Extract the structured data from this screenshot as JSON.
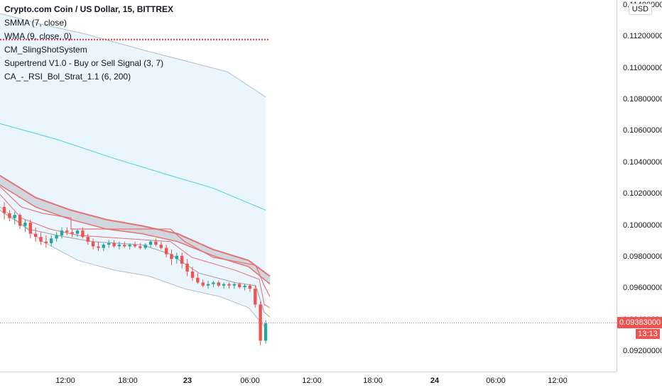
{
  "legend": {
    "title": "Crypto.com Coin / US Dollar, 15, BITTREX",
    "indicators": [
      "SMMA (7, close)",
      "WMA (9, close, 0)",
      "CM_SlingShotSystem",
      "Supertrend V1.0 - Buy or Sell Signal (3, 7)",
      "CA_-_RSI_Bol_Strat_1.1 (6, 200)"
    ]
  },
  "currency": "USD",
  "price_axis": {
    "ticks": [
      "0.11400000",
      "0.11200000",
      "0.11000000",
      "0.10800000",
      "0.10600000",
      "0.10400000",
      "0.10200000",
      "0.10000000",
      "0.09800000",
      "0.09600000",
      "0.09400000",
      "0.09200000"
    ],
    "last_price": "0.09383000",
    "countdown": "13:13"
  },
  "time_axis": {
    "ticks": [
      {
        "label": "12:00",
        "bold": false
      },
      {
        "label": "18:00",
        "bold": false
      },
      {
        "label": "23",
        "bold": true
      },
      {
        "label": "06:00",
        "bold": false
      },
      {
        "label": "12:00",
        "bold": false
      },
      {
        "label": "18:00",
        "bold": false
      },
      {
        "label": "24",
        "bold": true
      },
      {
        "label": "06:00",
        "bold": false
      },
      {
        "label": "12:00",
        "bold": false
      }
    ]
  },
  "colors": {
    "up": "#26a69a",
    "down": "#ef5350",
    "band_fill": "#e3f2fd",
    "band_line": "#b2bec9",
    "wma": "#4dd0e1",
    "supertrend": "#e57373",
    "cloud": "#c9cdd6",
    "stop_line": "#e53935"
  },
  "chart_data": {
    "type": "candlestick",
    "title": "Crypto.com Coin / US Dollar, 15, BITTREX",
    "interval": "15",
    "ylim": [
      0.091,
      0.1145
    ],
    "x_ticks": [
      "12:00",
      "18:00",
      "23",
      "06:00",
      "12:00",
      "18:00",
      "24",
      "06:00",
      "12:00"
    ],
    "last_price": 0.09383,
    "candles": [
      [
        0.1012,
        0.1015,
        0.1004,
        0.1008
      ],
      [
        0.1008,
        0.101,
        0.1003,
        0.1005
      ],
      [
        0.1005,
        0.1009,
        0.1001,
        0.1007
      ],
      [
        0.1007,
        0.1008,
        0.0998,
        0.1
      ],
      [
        0.1,
        0.1004,
        0.0996,
        0.1002
      ],
      [
        0.1002,
        0.1004,
        0.0992,
        0.0995
      ],
      [
        0.0995,
        0.0999,
        0.099,
        0.0993
      ],
      [
        0.0993,
        0.0996,
        0.0988,
        0.099
      ],
      [
        0.099,
        0.0994,
        0.0986,
        0.0989
      ],
      [
        0.0989,
        0.0994,
        0.0987,
        0.0992
      ],
      [
        0.0992,
        0.0996,
        0.099,
        0.0994
      ],
      [
        0.0994,
        0.0999,
        0.0992,
        0.0997
      ],
      [
        0.0997,
        0.0999,
        0.0994,
        0.0996
      ],
      [
        0.0996,
        0.0998,
        0.0993,
        0.0995
      ],
      [
        0.0995,
        0.0998,
        0.0993,
        0.0997
      ],
      [
        0.0997,
        0.0999,
        0.0992,
        0.0993
      ],
      [
        0.0993,
        0.0995,
        0.0988,
        0.099
      ],
      [
        0.099,
        0.0992,
        0.0985,
        0.0987
      ],
      [
        0.0987,
        0.099,
        0.0984,
        0.0986
      ],
      [
        0.0986,
        0.0989,
        0.0984,
        0.0988
      ],
      [
        0.0988,
        0.0991,
        0.0986,
        0.0989
      ],
      [
        0.0989,
        0.0991,
        0.0986,
        0.0987
      ],
      [
        0.0987,
        0.099,
        0.0985,
        0.0988
      ],
      [
        0.0988,
        0.099,
        0.0986,
        0.0987
      ],
      [
        0.0987,
        0.0989,
        0.0985,
        0.0988
      ],
      [
        0.0988,
        0.099,
        0.0986,
        0.0987
      ],
      [
        0.0987,
        0.0989,
        0.0985,
        0.0986
      ],
      [
        0.0986,
        0.0989,
        0.0985,
        0.0988
      ],
      [
        0.0988,
        0.0991,
        0.0986,
        0.099
      ],
      [
        0.099,
        0.0992,
        0.0987,
        0.0988
      ],
      [
        0.0988,
        0.099,
        0.0985,
        0.0986
      ],
      [
        0.0986,
        0.0988,
        0.098,
        0.0982
      ],
      [
        0.0982,
        0.0985,
        0.0975,
        0.0979
      ],
      [
        0.0979,
        0.0983,
        0.0976,
        0.0981
      ],
      [
        0.0981,
        0.0983,
        0.0973,
        0.0976
      ],
      [
        0.0976,
        0.0979,
        0.0968,
        0.0971
      ],
      [
        0.0971,
        0.0974,
        0.0965,
        0.0967
      ],
      [
        0.0967,
        0.097,
        0.0963,
        0.0964
      ],
      [
        0.0964,
        0.0966,
        0.0961,
        0.0962
      ],
      [
        0.0962,
        0.0965,
        0.096,
        0.0963
      ],
      [
        0.0963,
        0.0965,
        0.0961,
        0.0964
      ],
      [
        0.0964,
        0.0965,
        0.0961,
        0.0962
      ],
      [
        0.0962,
        0.0964,
        0.096,
        0.0963
      ],
      [
        0.0963,
        0.0964,
        0.096,
        0.0962
      ],
      [
        0.0962,
        0.0964,
        0.096,
        0.0963
      ],
      [
        0.0963,
        0.0964,
        0.096,
        0.0961
      ],
      [
        0.0961,
        0.0963,
        0.0959,
        0.0962
      ],
      [
        0.0962,
        0.0963,
        0.0958,
        0.096
      ],
      [
        0.096,
        0.0962,
        0.0948,
        0.095
      ],
      [
        0.095,
        0.0952,
        0.0924,
        0.0927
      ],
      [
        0.0927,
        0.094,
        0.0925,
        0.0938
      ]
    ]
  }
}
